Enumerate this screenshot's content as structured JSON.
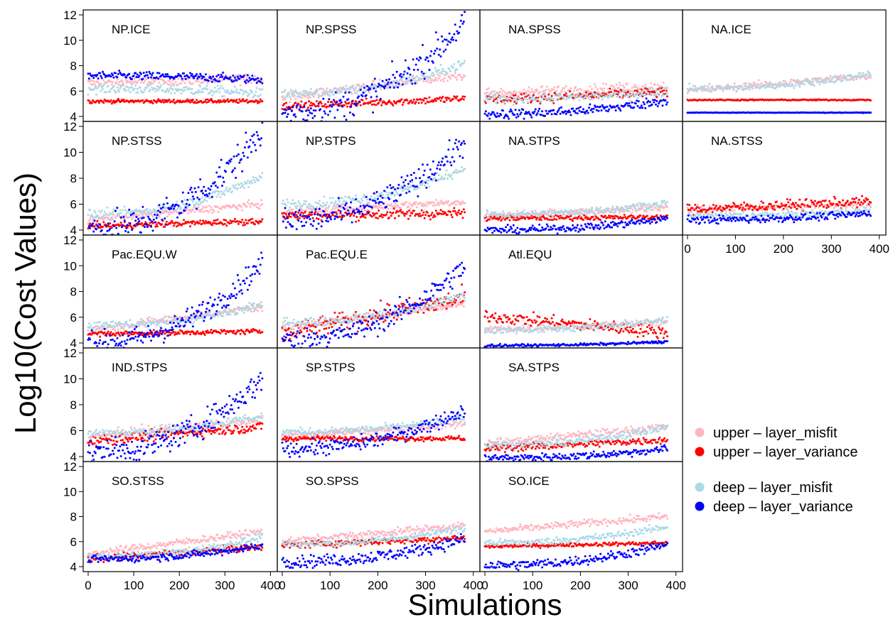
{
  "figure": {
    "ylabel": "Log10(Cost Values)",
    "xlabel": "Simulations"
  },
  "legend": {
    "items": [
      {
        "label": "upper – layer_misfit",
        "color": "#FFB6C1"
      },
      {
        "label": "upper – layer_variance",
        "color": "#FF0000"
      },
      {
        "label": "deep – layer_misfit",
        "color": "#ADD8E6"
      },
      {
        "label": "deep – layer_variance",
        "color": "#0000FF"
      }
    ]
  },
  "chart_data": {
    "type": "scatter",
    "xlim": [
      0,
      390
    ],
    "ylim": [
      4,
      12
    ],
    "yticks": [
      4,
      6,
      8,
      10,
      12
    ],
    "xticks": [
      0,
      100,
      200,
      300,
      400
    ],
    "grid": false,
    "legend_position": "right",
    "series_names": [
      "upper – layer_misfit",
      "upper – layer_variance",
      "deep – layer_misfit",
      "deep – layer_variance"
    ],
    "series_colors": [
      "#FFB6C1",
      "#FF0000",
      "#ADD8E6",
      "#0000FF"
    ],
    "panels": [
      {
        "title": "NP.ICE",
        "row": 0,
        "col": 0,
        "trends": [
          [
            6.6,
            7.0
          ],
          [
            5.2,
            5.2
          ],
          [
            6.2,
            5.8
          ],
          [
            7.2,
            6.9
          ]
        ],
        "spread": [
          0.4,
          0.15,
          0.4,
          0.35
        ]
      },
      {
        "title": "NP.SPSS",
        "row": 0,
        "col": 1,
        "trends": [
          [
            5.5,
            7.3
          ],
          [
            4.8,
            5.4
          ],
          [
            5.8,
            8.2
          ],
          [
            4.3,
            11.5
          ]
        ],
        "spread": [
          0.4,
          0.3,
          0.4,
          1.2
        ]
      },
      {
        "title": "NA.SPSS",
        "row": 0,
        "col": 2,
        "trends": [
          [
            5.8,
            6.4
          ],
          [
            5.3,
            5.9
          ],
          [
            5.4,
            6.0
          ],
          [
            4.2,
            5.3
          ]
        ],
        "spread": [
          0.4,
          0.4,
          0.4,
          0.4
        ]
      },
      {
        "title": "NA.ICE",
        "row": 0,
        "col": 3,
        "trends": [
          [
            6.0,
            7.2
          ],
          [
            5.3,
            5.3
          ],
          [
            6.2,
            7.4
          ],
          [
            4.3,
            4.3
          ]
        ],
        "spread": [
          0.3,
          0.05,
          0.3,
          0.02
        ]
      },
      {
        "title": "NP.STSS",
        "row": 1,
        "col": 0,
        "trends": [
          [
            4.8,
            6.0
          ],
          [
            4.3,
            4.7
          ],
          [
            5.2,
            8.2
          ],
          [
            4.1,
            11.6
          ]
        ],
        "spread": [
          0.3,
          0.25,
          0.4,
          1.3
        ]
      },
      {
        "title": "NP.STPS",
        "row": 1,
        "col": 1,
        "trends": [
          [
            5.4,
            6.2
          ],
          [
            5.1,
            5.3
          ],
          [
            6.0,
            8.8
          ],
          [
            4.7,
            10.8
          ]
        ],
        "spread": [
          0.3,
          0.4,
          0.4,
          1.0
        ]
      },
      {
        "title": "NA.STPS",
        "row": 1,
        "col": 2,
        "trends": [
          [
            5.0,
            5.8
          ],
          [
            4.9,
            5.0
          ],
          [
            5.2,
            6.1
          ],
          [
            4.0,
            4.9
          ]
        ],
        "spread": [
          0.3,
          0.2,
          0.3,
          0.3
        ]
      },
      {
        "title": "NA.STSS",
        "row": 1,
        "col": 3,
        "trends": [
          [
            5.6,
            6.0
          ],
          [
            5.6,
            6.2
          ],
          [
            5.1,
            5.5
          ],
          [
            4.8,
            5.3
          ]
        ],
        "spread": [
          0.3,
          0.4,
          0.3,
          0.3
        ]
      },
      {
        "title": "Pac.EQU.W",
        "row": 2,
        "col": 0,
        "trends": [
          [
            5.0,
            6.8
          ],
          [
            4.7,
            4.9
          ],
          [
            5.4,
            7.0
          ],
          [
            4.0,
            10.2
          ]
        ],
        "spread": [
          0.3,
          0.2,
          0.4,
          0.9
        ]
      },
      {
        "title": "Pac.EQU.E",
        "row": 2,
        "col": 1,
        "trends": [
          [
            5.2,
            7.0
          ],
          [
            4.7,
            7.5
          ],
          [
            5.6,
            7.8
          ],
          [
            4.2,
            10.0
          ]
        ],
        "spread": [
          0.3,
          0.8,
          0.4,
          0.9
        ]
      },
      {
        "title": "Atl.EQU",
        "row": 2,
        "col": 2,
        "trends": [
          [
            5.0,
            5.6
          ],
          [
            6.1,
            4.8
          ],
          [
            5.0,
            5.8
          ],
          [
            3.8,
            4.1
          ]
        ],
        "spread": [
          0.3,
          0.5,
          0.3,
          0.1
        ]
      },
      {
        "title": "IND.STPS",
        "row": 3,
        "col": 0,
        "trends": [
          [
            5.5,
            6.8
          ],
          [
            5.2,
            6.3
          ],
          [
            5.8,
            7.2
          ],
          [
            4.3,
            10.0
          ]
        ],
        "spread": [
          0.4,
          0.4,
          0.4,
          1.0
        ]
      },
      {
        "title": "SP.STPS",
        "row": 3,
        "col": 1,
        "trends": [
          [
            5.6,
            6.5
          ],
          [
            5.4,
            5.4
          ],
          [
            5.9,
            7.0
          ],
          [
            4.6,
            7.6
          ]
        ],
        "spread": [
          0.3,
          0.2,
          0.3,
          0.6
        ]
      },
      {
        "title": "SA.STPS",
        "row": 3,
        "col": 2,
        "trends": [
          [
            5.0,
            6.3
          ],
          [
            4.6,
            5.3
          ],
          [
            4.9,
            6.3
          ],
          [
            3.9,
            4.6
          ]
        ],
        "spread": [
          0.3,
          0.3,
          0.3,
          0.3
        ]
      },
      {
        "title": "SO.STSS",
        "row": 4,
        "col": 0,
        "trends": [
          [
            5.0,
            6.8
          ],
          [
            4.6,
            5.6
          ],
          [
            4.8,
            6.4
          ],
          [
            4.6,
            5.7
          ]
        ],
        "spread": [
          0.3,
          0.3,
          0.3,
          0.3
        ]
      },
      {
        "title": "SO.SPSS",
        "row": 4,
        "col": 1,
        "trends": [
          [
            6.0,
            7.3
          ],
          [
            5.7,
            6.3
          ],
          [
            5.8,
            7.1
          ],
          [
            4.4,
            6.2
          ]
        ],
        "spread": [
          0.3,
          0.3,
          0.3,
          0.5
        ]
      },
      {
        "title": "SO.ICE",
        "row": 4,
        "col": 2,
        "trends": [
          [
            6.8,
            8.0
          ],
          [
            5.6,
            5.9
          ],
          [
            5.9,
            7.2
          ],
          [
            4.1,
            5.8
          ]
        ],
        "spread": [
          0.3,
          0.15,
          0.3,
          0.4
        ]
      }
    ]
  }
}
